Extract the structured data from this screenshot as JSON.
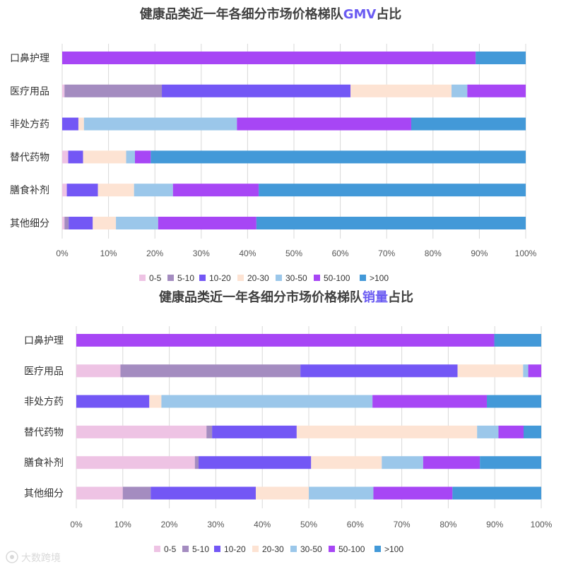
{
  "chart_data": [
    {
      "type": "bar",
      "orientation": "horizontal",
      "stacked": "100%",
      "title_prefix": "健康品类近一年各细分市场价格梯队",
      "title_highlight": "GMV",
      "title_suffix": "占比",
      "title_highlight_color": "#6b5cf2",
      "categories": [
        "口鼻护理",
        "医疗用品",
        "非处方药",
        "替代药物",
        "膳食补剂",
        "其他细分"
      ],
      "xlim": [
        0,
        100
      ],
      "x_ticks": [
        "0%",
        "10%",
        "20%",
        "30%",
        "40%",
        "50%",
        "60%",
        "70%",
        "80%",
        "90%",
        "100%"
      ],
      "grid": "vertical",
      "legend_position": "bottom",
      "series": [
        {
          "name": "0-5",
          "color": "#eec3e4",
          "values": [
            0,
            0.5,
            0,
            1.3,
            1,
            0.5
          ]
        },
        {
          "name": "5-10",
          "color": "#a48cc0",
          "values": [
            0,
            21,
            0,
            0,
            0,
            0.9
          ]
        },
        {
          "name": "10-20",
          "color": "#7357f5",
          "values": [
            0,
            40.7,
            3.5,
            3.2,
            6.7,
            5.2
          ]
        },
        {
          "name": "20-30",
          "color": "#fde3d3",
          "values": [
            0,
            21.8,
            1.2,
            9.3,
            7.8,
            5
          ]
        },
        {
          "name": "30-50",
          "color": "#9bc7ea",
          "values": [
            0,
            3.4,
            33,
            1.9,
            8.4,
            9.1
          ]
        },
        {
          "name": "50-100",
          "color": "#a746f5",
          "values": [
            89.2,
            12.6,
            37.6,
            3.4,
            18.5,
            21.2
          ]
        },
        {
          "name": ">100",
          "color": "#4399d8",
          "values": [
            10.8,
            0,
            24.7,
            80.9,
            57.6,
            58.1
          ]
        }
      ]
    },
    {
      "type": "bar",
      "orientation": "horizontal",
      "stacked": "100%",
      "title_prefix": "健康品类近一年各细分市场价格梯队",
      "title_highlight": "销量",
      "title_suffix": "占比",
      "title_highlight_color": "#6b5cf2",
      "categories": [
        "口鼻护理",
        "医疗用品",
        "非处方药",
        "替代药物",
        "膳食补剂",
        "其他细分"
      ],
      "xlim": [
        0,
        100
      ],
      "x_ticks": [
        "0%",
        "10%",
        "20%",
        "30%",
        "40%",
        "50%",
        "60%",
        "70%",
        "80%",
        "90%",
        "100%"
      ],
      "grid": "vertical",
      "legend_position": "bottom",
      "series": [
        {
          "name": "0-5",
          "color": "#eec3e4",
          "values": [
            0,
            9.5,
            0,
            28,
            25.5,
            10
          ]
        },
        {
          "name": "5-10",
          "color": "#a48cc0",
          "values": [
            0,
            38.7,
            0,
            1.2,
            0.8,
            6
          ]
        },
        {
          "name": "10-20",
          "color": "#7357f5",
          "values": [
            0,
            33.8,
            15.7,
            18.2,
            24.2,
            22.6
          ]
        },
        {
          "name": "20-30",
          "color": "#fde3d3",
          "values": [
            0,
            14.1,
            2.6,
            38.8,
            15.2,
            11.4
          ]
        },
        {
          "name": "30-50",
          "color": "#9bc7ea",
          "values": [
            0,
            1.1,
            45.4,
            4.6,
            8.9,
            13.9
          ]
        },
        {
          "name": "50-100",
          "color": "#a746f5",
          "values": [
            89.9,
            2.8,
            24.6,
            5.4,
            12.2,
            17
          ]
        },
        {
          "name": ">100",
          "color": "#4399d8",
          "values": [
            10.1,
            0,
            11.7,
            3.8,
            13.2,
            19.1
          ]
        }
      ]
    }
  ],
  "watermark": "大数跨境",
  "watermark_icon": "brand-logo-icon"
}
